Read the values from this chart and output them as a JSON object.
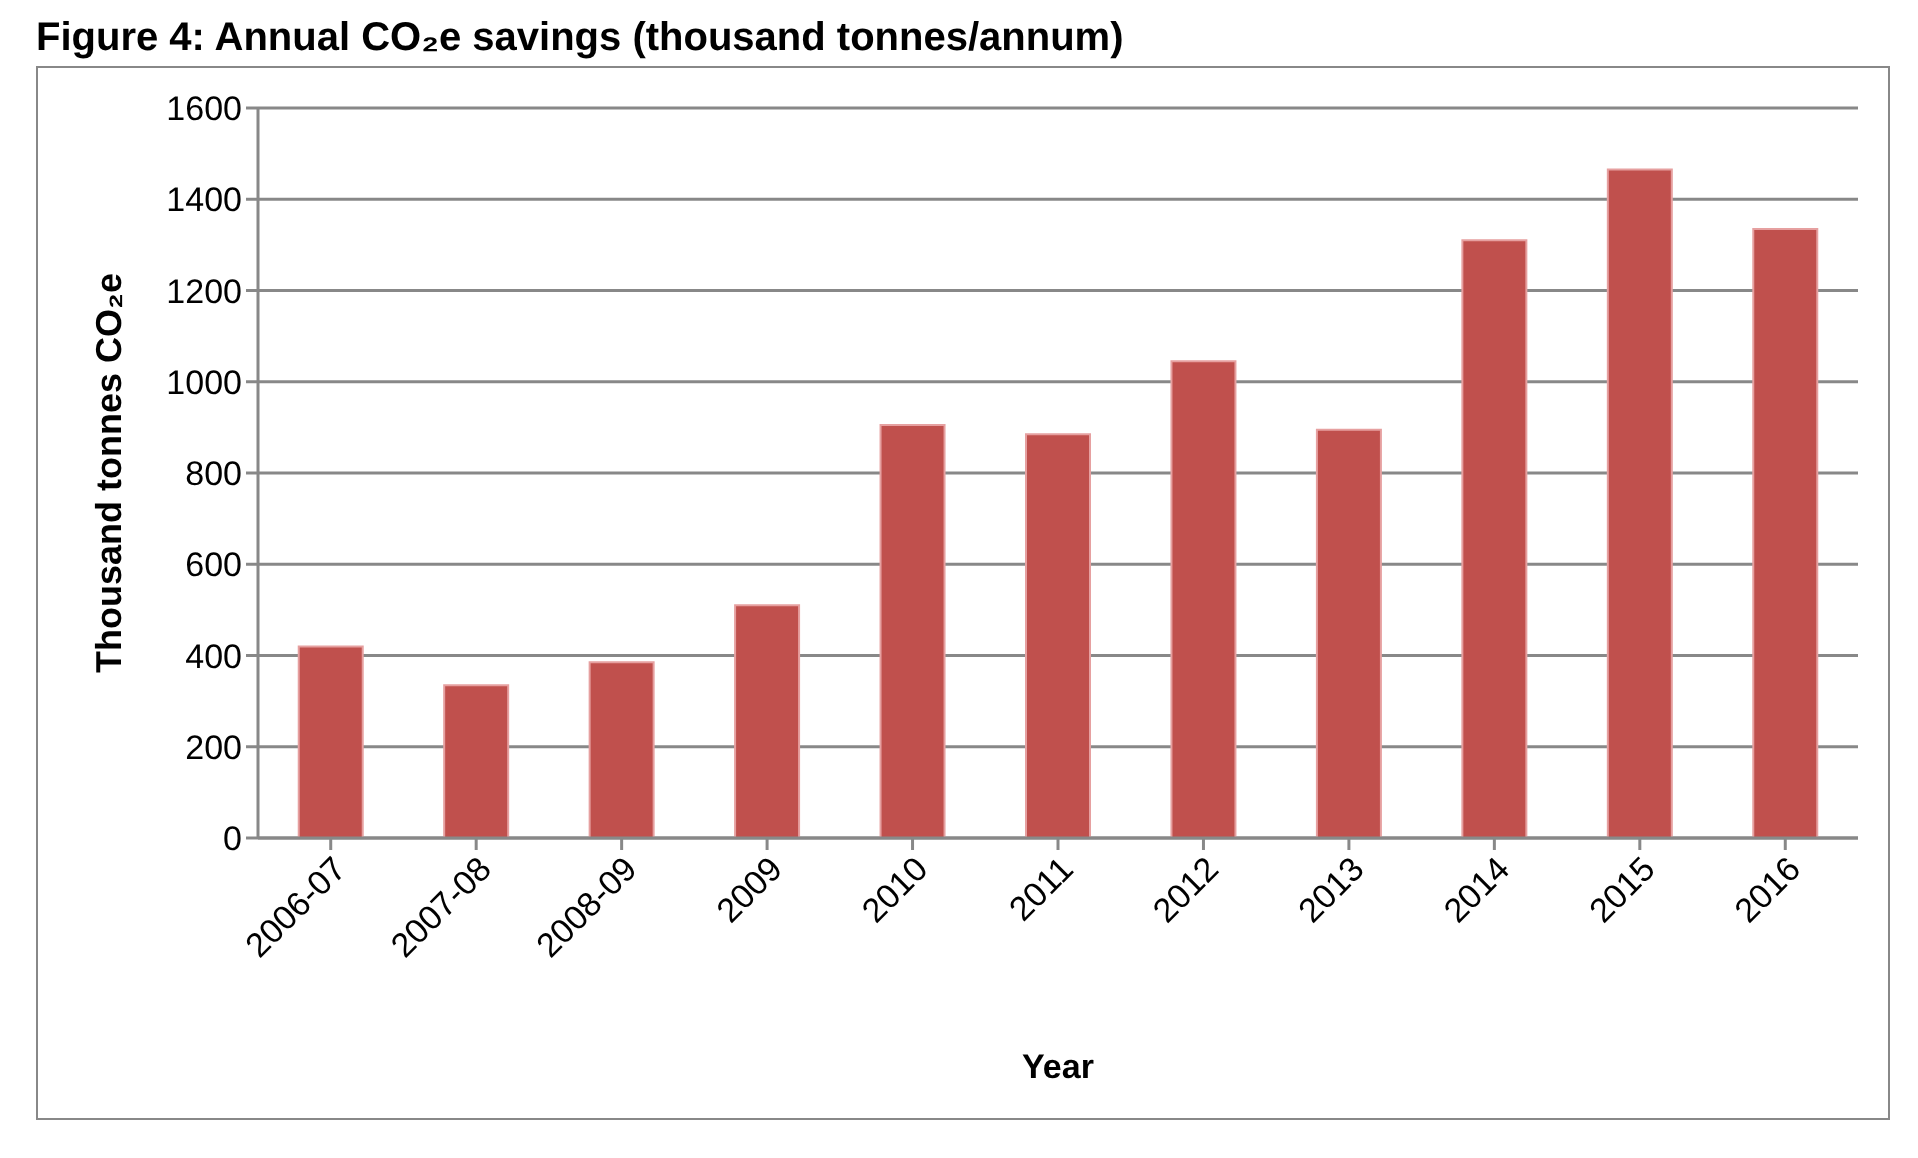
{
  "chart_data": {
    "type": "bar",
    "title": "Figure 4: Annual CO₂e savings (thousand tonnes/annum)",
    "xlabel": "Year",
    "ylabel": "Thousand tonnes CO₂e",
    "categories": [
      "2006-07",
      "2007-08",
      "2008-09",
      "2009",
      "2010",
      "2011",
      "2012",
      "2013",
      "2014",
      "2015",
      "2016"
    ],
    "values": [
      420,
      335,
      385,
      510,
      905,
      885,
      1045,
      895,
      1310,
      1465,
      1335
    ],
    "color": "#c0504d",
    "ylim": [
      0,
      1600
    ],
    "yticks": [
      0,
      200,
      400,
      600,
      800,
      1000,
      1200,
      1400,
      1600
    ],
    "grid": "y",
    "legend": false
  }
}
